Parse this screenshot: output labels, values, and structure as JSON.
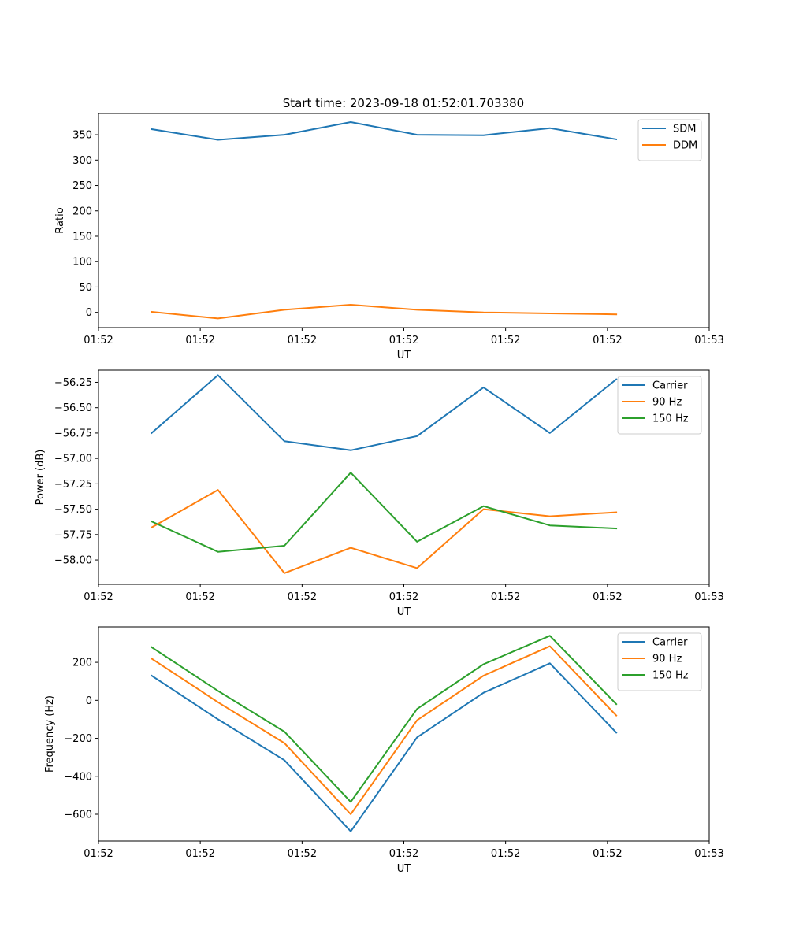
{
  "figure": {
    "title": "Start time: 2023-09-18 01:52:01.703380"
  },
  "colors": {
    "blue": "#1f77b4",
    "orange": "#ff7f0e",
    "green": "#2ca02c"
  },
  "chart_data": [
    {
      "type": "line",
      "title": "Start time: 2023-09-18 01:52:01.703380",
      "xlabel": "UT",
      "ylabel": "Ratio",
      "x": [
        1,
        2,
        3,
        4,
        5,
        6,
        7,
        8
      ],
      "xlim": [
        0.2,
        9.4
      ],
      "xticks": [
        0.2,
        1.733,
        3.267,
        4.8,
        6.333,
        7.867,
        9.4
      ],
      "xtick_labels": [
        "01:52",
        "01:52",
        "01:52",
        "01:52",
        "01:52",
        "01:52",
        "01:53"
      ],
      "ylim": [
        -30,
        392
      ],
      "yticks": [
        0,
        50,
        100,
        150,
        200,
        250,
        300,
        350
      ],
      "ytick_labels": [
        "0",
        "50",
        "100",
        "150",
        "200",
        "250",
        "300",
        "350"
      ],
      "legend": "top-right",
      "series": [
        {
          "name": "SDM",
          "color": "#1f77b4",
          "values": [
            361,
            340,
            350,
            375,
            350,
            349,
            363,
            341
          ]
        },
        {
          "name": "DDM",
          "color": "#ff7f0e",
          "values": [
            1,
            -12,
            5,
            15,
            5,
            0,
            -2,
            -4
          ]
        }
      ]
    },
    {
      "type": "line",
      "xlabel": "UT",
      "ylabel": "Power (dB)",
      "x": [
        1,
        2,
        3,
        4,
        5,
        6,
        7,
        8
      ],
      "xlim": [
        0.2,
        9.4
      ],
      "xticks": [
        0.2,
        1.733,
        3.267,
        4.8,
        6.333,
        7.867,
        9.4
      ],
      "xtick_labels": [
        "01:52",
        "01:52",
        "01:52",
        "01:52",
        "01:52",
        "01:52",
        "01:53"
      ],
      "ylim": [
        -58.24,
        -56.13
      ],
      "yticks": [
        -58.0,
        -57.75,
        -57.5,
        -57.25,
        -57.0,
        -56.75,
        -56.5,
        -56.25
      ],
      "ytick_labels": [
        "−58.00",
        "−57.75",
        "−57.50",
        "−57.25",
        "−57.00",
        "−56.75",
        "−56.50",
        "−56.25"
      ],
      "legend": "top-right",
      "series": [
        {
          "name": "Carrier",
          "color": "#1f77b4",
          "values": [
            -56.75,
            -56.18,
            -56.83,
            -56.92,
            -56.78,
            -56.3,
            -56.75,
            -56.22
          ]
        },
        {
          "name": "90 Hz",
          "color": "#ff7f0e",
          "values": [
            -57.68,
            -57.31,
            -58.13,
            -57.88,
            -58.08,
            -57.5,
            -57.57,
            -57.53
          ]
        },
        {
          "name": "150 Hz",
          "color": "#2ca02c",
          "values": [
            -57.62,
            -57.92,
            -57.86,
            -57.14,
            -57.82,
            -57.47,
            -57.66,
            -57.69
          ]
        }
      ]
    },
    {
      "type": "line",
      "xlabel": "UT",
      "ylabel": "Frequency (Hz)",
      "x": [
        1,
        2,
        3,
        4,
        5,
        6,
        7,
        8
      ],
      "xlim": [
        0.2,
        9.4
      ],
      "xticks": [
        0.2,
        1.733,
        3.267,
        4.8,
        6.333,
        7.867,
        9.4
      ],
      "xtick_labels": [
        "01:52",
        "01:52",
        "01:52",
        "01:52",
        "01:52",
        "01:52",
        "01:53"
      ],
      "ylim": [
        -741,
        387
      ],
      "yticks": [
        -600,
        -400,
        -200,
        0,
        200
      ],
      "ytick_labels": [
        "−600",
        "−400",
        "−200",
        "0",
        "200"
      ],
      "legend": "top-right",
      "series": [
        {
          "name": "Carrier",
          "color": "#1f77b4",
          "values": [
            130,
            -100,
            -315,
            -690,
            -195,
            40,
            195,
            -170
          ]
        },
        {
          "name": "90 Hz",
          "color": "#ff7f0e",
          "values": [
            220,
            -10,
            -225,
            -600,
            -105,
            130,
            285,
            -80
          ]
        },
        {
          "name": "150 Hz",
          "color": "#2ca02c",
          "values": [
            280,
            50,
            -165,
            -535,
            -45,
            190,
            340,
            -20
          ]
        }
      ]
    }
  ]
}
